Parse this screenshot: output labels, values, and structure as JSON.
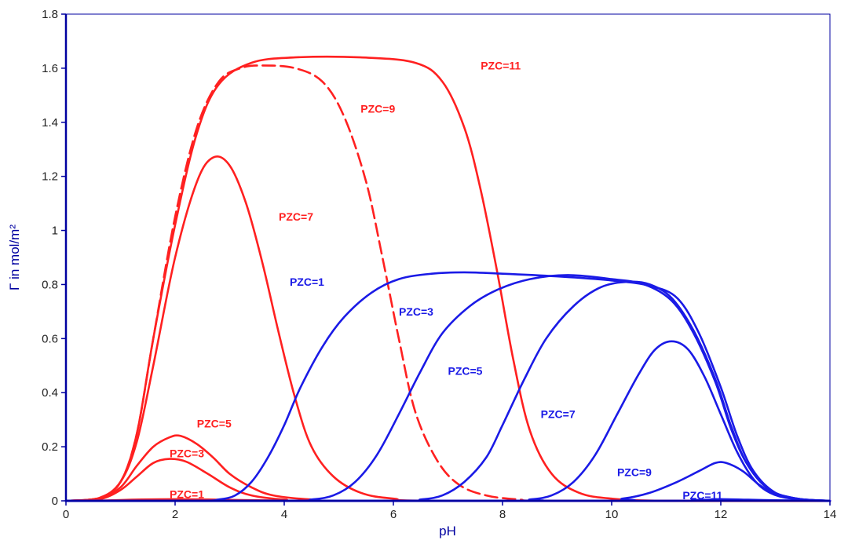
{
  "chart_data": {
    "type": "line",
    "title": "",
    "xlabel": "pH",
    "ylabel": "Γ in mol/m²",
    "xlim": [
      0,
      14
    ],
    "ylim": [
      0,
      1.8
    ],
    "x_ticks": [
      "0",
      "2",
      "4",
      "6",
      "8",
      "10",
      "12",
      "14"
    ],
    "y_ticks": [
      "0",
      "0.2",
      "0.4",
      "0.6",
      "0.8",
      "1",
      "1.2",
      "1.4",
      "1.6",
      "1.8"
    ],
    "grid": false,
    "legend": "none",
    "axis_color": "#0000a0",
    "series": [
      {
        "label": "PZC=1",
        "color": "#ff2020",
        "dashed": false,
        "label_at": [
          1.9,
          0.005
        ],
        "points": [
          [
            0,
            0
          ],
          [
            0.6,
            0.001
          ],
          [
            1.0,
            0.003
          ],
          [
            1.4,
            0.005
          ],
          [
            2.0,
            0.006
          ],
          [
            2.6,
            0.005
          ],
          [
            3.2,
            0.003
          ],
          [
            4,
            0.001
          ],
          [
            5,
            0
          ],
          [
            14,
            0
          ]
        ]
      },
      {
        "label": "PZC=3",
        "color": "#ff2020",
        "dashed": false,
        "label_at": [
          1.9,
          0.155
        ],
        "points": [
          [
            0,
            0
          ],
          [
            0.6,
            0.005
          ],
          [
            1.0,
            0.04
          ],
          [
            1.3,
            0.09
          ],
          [
            1.6,
            0.14
          ],
          [
            1.9,
            0.155
          ],
          [
            2.2,
            0.145
          ],
          [
            2.6,
            0.1
          ],
          [
            3.0,
            0.05
          ],
          [
            3.4,
            0.02
          ],
          [
            4.0,
            0.005
          ],
          [
            5,
            0
          ],
          [
            14,
            0
          ]
        ]
      },
      {
        "label": "PZC=5",
        "color": "#ff2020",
        "dashed": false,
        "label_at": [
          2.4,
          0.265
        ],
        "points": [
          [
            0,
            0
          ],
          [
            0.6,
            0.007
          ],
          [
            1.0,
            0.05
          ],
          [
            1.3,
            0.13
          ],
          [
            1.6,
            0.2
          ],
          [
            1.9,
            0.235
          ],
          [
            2.1,
            0.24
          ],
          [
            2.4,
            0.21
          ],
          [
            2.7,
            0.16
          ],
          [
            3.0,
            0.1
          ],
          [
            3.4,
            0.05
          ],
          [
            3.8,
            0.02
          ],
          [
            4.5,
            0.005
          ],
          [
            5.5,
            0
          ],
          [
            14,
            0
          ]
        ]
      },
      {
        "label": "PZC=7",
        "color": "#ff2020",
        "dashed": false,
        "label_at": [
          3.9,
          1.03
        ],
        "points": [
          [
            0,
            0
          ],
          [
            0.6,
            0.01
          ],
          [
            1.0,
            0.07
          ],
          [
            1.3,
            0.22
          ],
          [
            1.6,
            0.5
          ],
          [
            2.0,
            0.9
          ],
          [
            2.4,
            1.18
          ],
          [
            2.7,
            1.27
          ],
          [
            3.0,
            1.24
          ],
          [
            3.3,
            1.1
          ],
          [
            3.6,
            0.88
          ],
          [
            3.9,
            0.62
          ],
          [
            4.2,
            0.38
          ],
          [
            4.5,
            0.2
          ],
          [
            4.9,
            0.09
          ],
          [
            5.4,
            0.03
          ],
          [
            6.0,
            0.008
          ],
          [
            7,
            0
          ],
          [
            14,
            0
          ]
        ]
      },
      {
        "label": "PZC=9",
        "color": "#ff2020",
        "dashed": true,
        "label_at": [
          5.4,
          1.43
        ],
        "points": [
          [
            0,
            0
          ],
          [
            0.6,
            0.01
          ],
          [
            1.0,
            0.07
          ],
          [
            1.3,
            0.25
          ],
          [
            1.6,
            0.6
          ],
          [
            2.0,
            1.05
          ],
          [
            2.4,
            1.38
          ],
          [
            2.8,
            1.55
          ],
          [
            3.2,
            1.6
          ],
          [
            3.6,
            1.61
          ],
          [
            4.2,
            1.6
          ],
          [
            4.7,
            1.55
          ],
          [
            5.1,
            1.42
          ],
          [
            5.5,
            1.18
          ],
          [
            5.8,
            0.9
          ],
          [
            6.1,
            0.6
          ],
          [
            6.4,
            0.33
          ],
          [
            6.8,
            0.15
          ],
          [
            7.2,
            0.06
          ],
          [
            7.7,
            0.02
          ],
          [
            8.3,
            0.005
          ],
          [
            9,
            0
          ],
          [
            14,
            0
          ]
        ]
      },
      {
        "label": "PZC=11",
        "color": "#ff2020",
        "dashed": false,
        "label_at": [
          7.6,
          1.59
        ],
        "points": [
          [
            0,
            0
          ],
          [
            0.6,
            0.01
          ],
          [
            1.0,
            0.07
          ],
          [
            1.3,
            0.25
          ],
          [
            1.6,
            0.6
          ],
          [
            2.0,
            1.02
          ],
          [
            2.4,
            1.36
          ],
          [
            2.8,
            1.54
          ],
          [
            3.4,
            1.62
          ],
          [
            4.2,
            1.64
          ],
          [
            5.4,
            1.64
          ],
          [
            6.4,
            1.62
          ],
          [
            6.9,
            1.55
          ],
          [
            7.3,
            1.38
          ],
          [
            7.6,
            1.15
          ],
          [
            7.9,
            0.85
          ],
          [
            8.2,
            0.52
          ],
          [
            8.5,
            0.26
          ],
          [
            8.9,
            0.1
          ],
          [
            9.4,
            0.03
          ],
          [
            10.0,
            0.008
          ],
          [
            11,
            0
          ],
          [
            14,
            0
          ]
        ]
      },
      {
        "label": "PZC=1",
        "color": "#1a1ae6",
        "dashed": false,
        "label_at": [
          4.1,
          0.79
        ],
        "points": [
          [
            0,
            0
          ],
          [
            2.4,
            0
          ],
          [
            2.8,
            0.005
          ],
          [
            3.1,
            0.02
          ],
          [
            3.4,
            0.07
          ],
          [
            3.7,
            0.16
          ],
          [
            4.0,
            0.28
          ],
          [
            4.3,
            0.42
          ],
          [
            4.7,
            0.57
          ],
          [
            5.1,
            0.68
          ],
          [
            5.6,
            0.77
          ],
          [
            6.1,
            0.82
          ],
          [
            6.7,
            0.84
          ],
          [
            7.3,
            0.845
          ],
          [
            8.0,
            0.84
          ],
          [
            9.0,
            0.83
          ],
          [
            10.0,
            0.815
          ],
          [
            10.7,
            0.795
          ],
          [
            11.2,
            0.75
          ],
          [
            11.6,
            0.62
          ],
          [
            12.0,
            0.42
          ],
          [
            12.3,
            0.24
          ],
          [
            12.6,
            0.11
          ],
          [
            13.0,
            0.03
          ],
          [
            13.5,
            0.005
          ],
          [
            14,
            0
          ]
        ]
      },
      {
        "label": "PZC=3",
        "color": "#1a1ae6",
        "dashed": false,
        "label_at": [
          6.1,
          0.68
        ],
        "points": [
          [
            0,
            0
          ],
          [
            4.0,
            0
          ],
          [
            4.5,
            0.005
          ],
          [
            4.9,
            0.02
          ],
          [
            5.3,
            0.07
          ],
          [
            5.7,
            0.17
          ],
          [
            6.1,
            0.32
          ],
          [
            6.5,
            0.48
          ],
          [
            6.9,
            0.62
          ],
          [
            7.4,
            0.72
          ],
          [
            7.9,
            0.78
          ],
          [
            8.5,
            0.82
          ],
          [
            9.2,
            0.835
          ],
          [
            10.0,
            0.82
          ],
          [
            10.6,
            0.8
          ],
          [
            11.1,
            0.74
          ],
          [
            11.5,
            0.62
          ],
          [
            11.9,
            0.44
          ],
          [
            12.2,
            0.26
          ],
          [
            12.5,
            0.13
          ],
          [
            12.9,
            0.04
          ],
          [
            13.4,
            0.008
          ],
          [
            14,
            0
          ]
        ]
      },
      {
        "label": "PZC=5",
        "color": "#1a1ae6",
        "dashed": false,
        "label_at": [
          7.0,
          0.46
        ],
        "points": [
          [
            0,
            0
          ],
          [
            6.0,
            0
          ],
          [
            6.5,
            0.005
          ],
          [
            6.9,
            0.02
          ],
          [
            7.3,
            0.07
          ],
          [
            7.7,
            0.16
          ],
          [
            8.0,
            0.28
          ],
          [
            8.4,
            0.45
          ],
          [
            8.8,
            0.6
          ],
          [
            9.3,
            0.72
          ],
          [
            9.8,
            0.79
          ],
          [
            10.3,
            0.81
          ],
          [
            10.7,
            0.8
          ],
          [
            11.1,
            0.75
          ],
          [
            11.5,
            0.63
          ],
          [
            11.9,
            0.45
          ],
          [
            12.2,
            0.27
          ],
          [
            12.5,
            0.13
          ],
          [
            12.9,
            0.04
          ],
          [
            13.4,
            0.008
          ],
          [
            14,
            0
          ]
        ]
      },
      {
        "label": "PZC=7",
        "color": "#1a1ae6",
        "dashed": false,
        "label_at": [
          8.7,
          0.3
        ],
        "points": [
          [
            0,
            0
          ],
          [
            8.0,
            0
          ],
          [
            8.5,
            0.005
          ],
          [
            8.9,
            0.02
          ],
          [
            9.3,
            0.07
          ],
          [
            9.7,
            0.17
          ],
          [
            10.1,
            0.32
          ],
          [
            10.5,
            0.47
          ],
          [
            10.8,
            0.56
          ],
          [
            11.1,
            0.59
          ],
          [
            11.4,
            0.56
          ],
          [
            11.7,
            0.46
          ],
          [
            12.0,
            0.32
          ],
          [
            12.3,
            0.18
          ],
          [
            12.6,
            0.08
          ],
          [
            12.9,
            0.03
          ],
          [
            13.3,
            0.008
          ],
          [
            14,
            0
          ]
        ]
      },
      {
        "label": "PZC=9",
        "color": "#1a1ae6",
        "dashed": false,
        "label_at": [
          10.1,
          0.085
        ],
        "points": [
          [
            0,
            0
          ],
          [
            9.5,
            0
          ],
          [
            10.2,
            0.008
          ],
          [
            10.7,
            0.03
          ],
          [
            11.2,
            0.07
          ],
          [
            11.6,
            0.11
          ],
          [
            11.9,
            0.14
          ],
          [
            12.1,
            0.14
          ],
          [
            12.4,
            0.11
          ],
          [
            12.7,
            0.06
          ],
          [
            13.0,
            0.025
          ],
          [
            13.4,
            0.006
          ],
          [
            14,
            0
          ]
        ]
      },
      {
        "label": "PZC=11",
        "color": "#1a1ae6",
        "dashed": false,
        "label_at": [
          11.3,
          0.0
        ],
        "points": [
          [
            0,
            0
          ],
          [
            10.5,
            0
          ],
          [
            11.5,
            0.003
          ],
          [
            12.0,
            0.006
          ],
          [
            12.5,
            0.004
          ],
          [
            13.0,
            0.002
          ],
          [
            14,
            0
          ]
        ]
      }
    ]
  }
}
